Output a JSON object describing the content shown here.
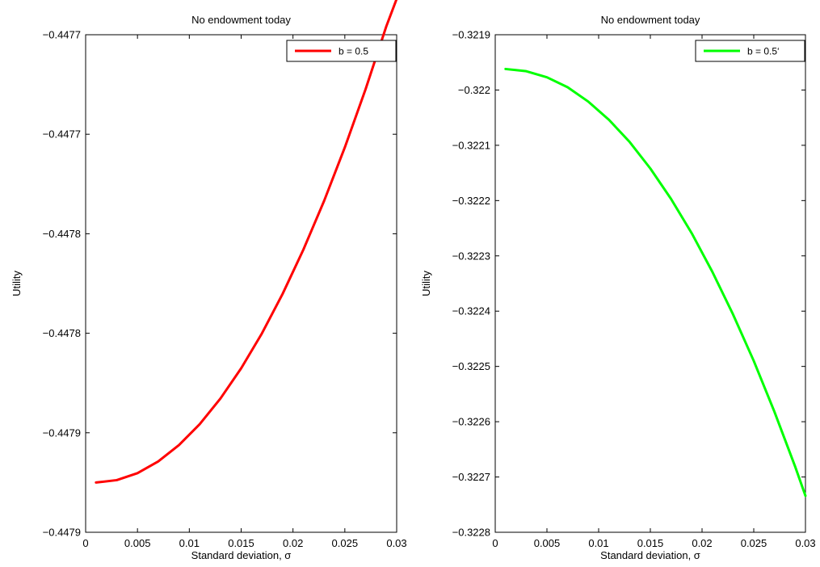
{
  "chart_data": [
    {
      "type": "line",
      "title": "No endowment today",
      "xlabel": "Standard deviation, σ",
      "ylabel": "Utility",
      "xlim": [
        0,
        0.03
      ],
      "ylim": [
        -0.447925,
        -0.447675
      ],
      "x_ticks": [
        0,
        0.005,
        0.01,
        0.015,
        0.02,
        0.025,
        0.03
      ],
      "x_tick_labels": [
        "0",
        "0.005",
        "0.01",
        "0.015",
        "0.02",
        "0.025",
        "0.03"
      ],
      "y_ticks": [
        -0.447675,
        -0.447725,
        -0.447775,
        -0.447825,
        -0.447875,
        -0.447925
      ],
      "y_tick_labels": [
        "−0.4477",
        "−0.4477",
        "−0.4478",
        "−0.4478",
        "−0.4479",
        "−0.4479"
      ],
      "legend_position": "top-right",
      "grid": false,
      "series": [
        {
          "name": "b = 0.5",
          "color": "#ff0000",
          "x": [
            0.001,
            0.003,
            0.005,
            0.007,
            0.009,
            0.011,
            0.013,
            0.015,
            0.017,
            0.019,
            0.021,
            0.023,
            0.025,
            0.027,
            0.029,
            0.03
          ],
          "y": [
            -0.4479,
            -0.4478988,
            -0.4478953,
            -0.4478894,
            -0.4478812,
            -0.4478707,
            -0.4478578,
            -0.4478426,
            -0.4478251,
            -0.4478052,
            -0.447783,
            -0.4477585,
            -0.4477316,
            -0.4477024,
            -0.4476708,
            -0.447657
          ]
        }
      ]
    },
    {
      "type": "line",
      "title": "No endowment today",
      "xlabel": "Standard deviation, σ",
      "ylabel": "Utility",
      "xlim": [
        0,
        0.03
      ],
      "ylim": [
        -0.3228,
        -0.3219
      ],
      "x_ticks": [
        0,
        0.005,
        0.01,
        0.015,
        0.02,
        0.025,
        0.03
      ],
      "x_tick_labels": [
        "0",
        "0.005",
        "0.01",
        "0.015",
        "0.02",
        "0.025",
        "0.03"
      ],
      "y_ticks": [
        -0.3219,
        -0.322,
        -0.3221,
        -0.3222,
        -0.3223,
        -0.3224,
        -0.3225,
        -0.3226,
        -0.3227,
        -0.3228
      ],
      "y_tick_labels": [
        "−0.3219",
        "−0.322",
        "−0.3221",
        "−0.3222",
        "−0.3223",
        "−0.3224",
        "−0.3225",
        "−0.3226",
        "−0.3227",
        "−0.3228"
      ],
      "legend_position": "top-right",
      "grid": false,
      "series": [
        {
          "name": "b = 0.5‘",
          "color": "#00ff00",
          "x": [
            0.001,
            0.003,
            0.005,
            0.007,
            0.009,
            0.011,
            0.013,
            0.015,
            0.017,
            0.019,
            0.021,
            0.023,
            0.025,
            0.027,
            0.029,
            0.03
          ],
          "y": [
            -0.321962,
            -0.321966,
            -0.321977,
            -0.321995,
            -0.322021,
            -0.322054,
            -0.322094,
            -0.322142,
            -0.322197,
            -0.322259,
            -0.322329,
            -0.322406,
            -0.32249,
            -0.322582,
            -0.322681,
            -0.322734
          ]
        }
      ]
    }
  ]
}
